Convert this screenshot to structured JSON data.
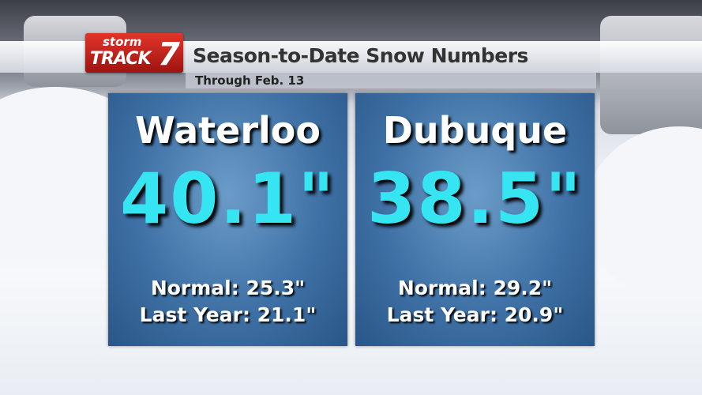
{
  "logo": {
    "top": "storm",
    "main": "TRACK",
    "number": "7"
  },
  "header": {
    "title": "Season-to-Date Snow Numbers",
    "subtitle": "Through Feb. 13"
  },
  "panels": [
    {
      "city": "Waterloo",
      "total": "40.1\"",
      "normal": "Normal: 25.3\"",
      "last_year": "Last Year: 21.1\""
    },
    {
      "city": "Dubuque",
      "total": "38.5\"",
      "normal": "Normal: 29.2\"",
      "last_year": "Last Year: 20.9\""
    }
  ]
}
